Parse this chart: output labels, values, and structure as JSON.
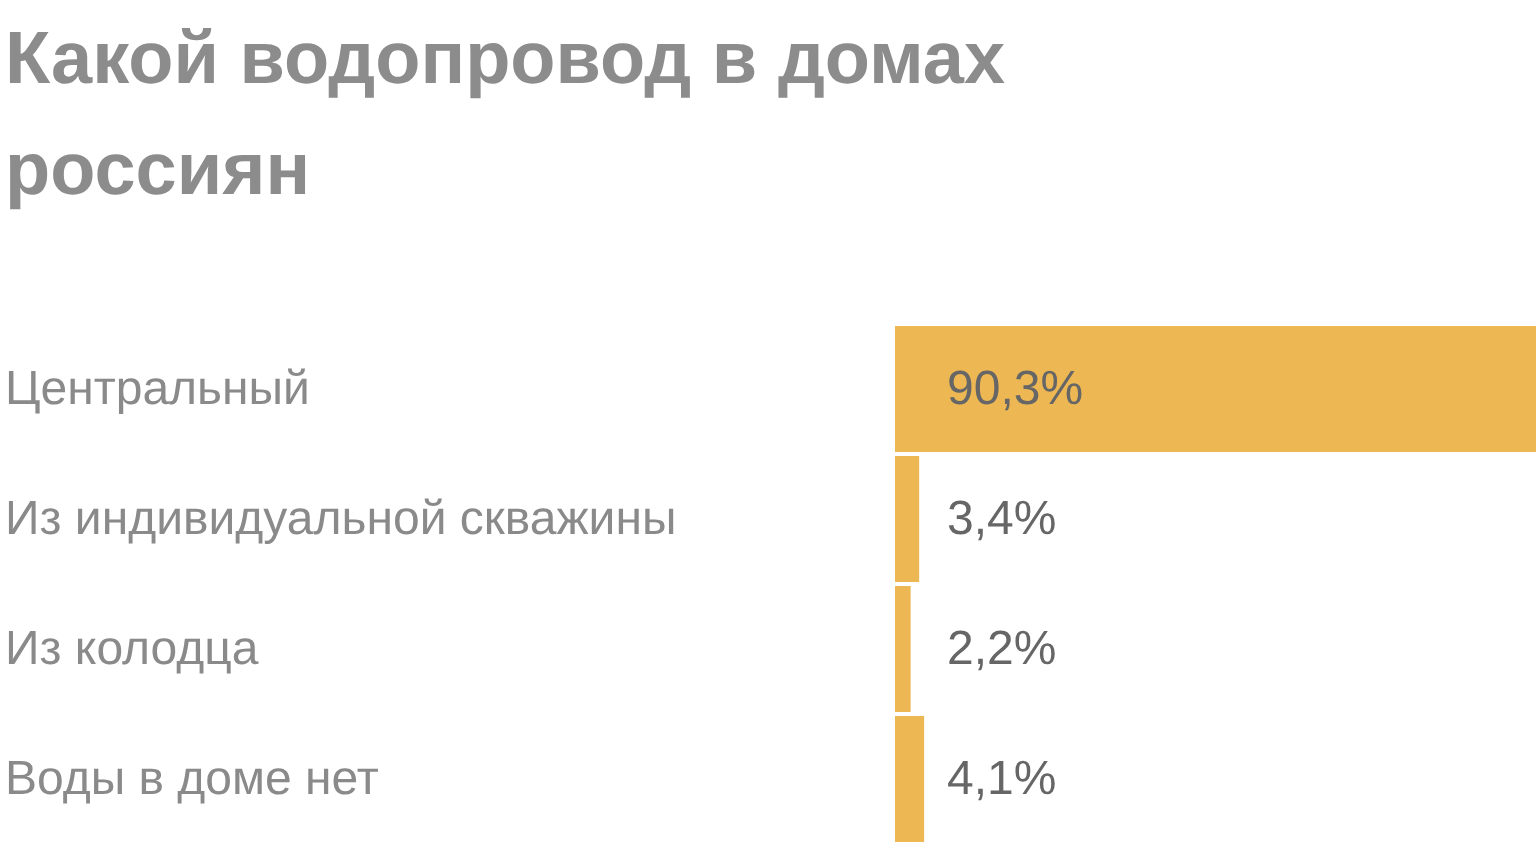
{
  "chart_data": {
    "type": "bar",
    "orientation": "horizontal",
    "title": "Какой водопровод в домах россиян",
    "categories": [
      "Центральный",
      "Из индивидуальной скважины",
      "Из колодца",
      "Воды в доме нет"
    ],
    "values": [
      90.3,
      3.4,
      2.2,
      4.1
    ],
    "value_labels": [
      "90,3%",
      "3,4%",
      "2,2%",
      "4,1%"
    ],
    "color": "#edb853"
  }
}
